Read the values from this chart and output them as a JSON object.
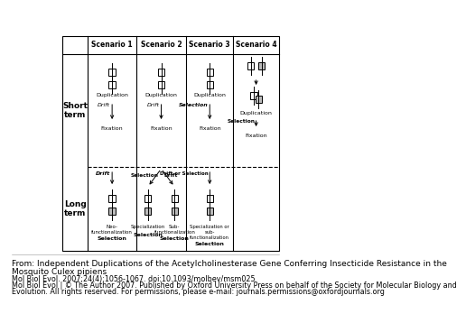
{
  "caption_lines": [
    "From: Independent Duplications of the Acetylcholinesterase Gene Conferring Insecticide Resistance in the",
    "Mosquito Culex pipiens",
    "Mol Biol Evol. 2007;24(4):1056-1067. doi:10.1093/molbev/msm025",
    "Mol Biol Evol | © The Author 2007. Published by Oxford University Press on behalf of the Society for Molecular Biology and",
    "Evolution. All rights reserved. For permissions, please e-mail: journals.permissions@oxfordjournals.org"
  ],
  "scenarios": [
    "Scenario 1",
    "Scenario 2",
    "Scenario 3",
    "Scenario 4"
  ],
  "short_term_label": "Short\nterm",
  "long_term_label": "Long\nterm",
  "background_color": "#ffffff",
  "gene_fill_color": "#bbbbbb"
}
